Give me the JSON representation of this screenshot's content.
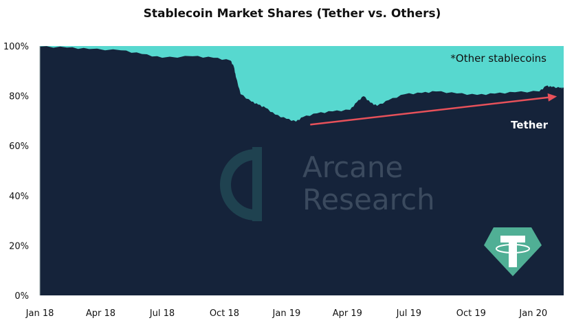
{
  "chart_data": {
    "type": "area",
    "stacked": true,
    "title": "Stablecoin Market Shares (Tether vs. Others)",
    "xlabel": "",
    "ylabel": "",
    "ylim": [
      0,
      100
    ],
    "xlim": [
      "2018-01-01",
      "2020-02-15"
    ],
    "y_ticks": [
      0,
      20,
      40,
      60,
      80,
      100
    ],
    "y_tick_labels": [
      "0%",
      "20%",
      "40%",
      "60%",
      "80%",
      "100%"
    ],
    "x_ticks": [
      "2018-01-01",
      "2018-04-01",
      "2018-07-01",
      "2018-10-01",
      "2019-01-01",
      "2019-04-01",
      "2019-07-01",
      "2019-10-01",
      "2020-01-01"
    ],
    "x_tick_labels": [
      "Jan 18",
      "Apr 18",
      "Jul 18",
      "Oct 18",
      "Jan 19",
      "Apr 19",
      "Jul 19",
      "Oct 19",
      "Jan 20"
    ],
    "grid": false,
    "series": [
      {
        "name": "Tether",
        "color": "#15233a",
        "points": [
          [
            "2018-01-01",
            99.8
          ],
          [
            "2018-02-10",
            99.4
          ],
          [
            "2018-03-15",
            98.8
          ],
          [
            "2018-05-01",
            98.3
          ],
          [
            "2018-06-01",
            96.8
          ],
          [
            "2018-07-01",
            95.3
          ],
          [
            "2018-08-15",
            95.9
          ],
          [
            "2018-09-15",
            95.3
          ],
          [
            "2018-10-10",
            94.2
          ],
          [
            "2018-10-15",
            91.7
          ],
          [
            "2018-10-18",
            87.6
          ],
          [
            "2018-10-25",
            80.7
          ],
          [
            "2018-11-10",
            77.7
          ],
          [
            "2018-11-20",
            76.5
          ],
          [
            "2018-12-01",
            75.2
          ],
          [
            "2018-12-15",
            72.5
          ],
          [
            "2019-01-01",
            70.8
          ],
          [
            "2019-01-15",
            69.7
          ],
          [
            "2019-01-25",
            71.5
          ],
          [
            "2019-02-15",
            73.0
          ],
          [
            "2019-03-10",
            73.8
          ],
          [
            "2019-04-05",
            74.4
          ],
          [
            "2019-04-15",
            77.5
          ],
          [
            "2019-04-25",
            79.9
          ],
          [
            "2019-05-05",
            77.3
          ],
          [
            "2019-05-15",
            76.0
          ],
          [
            "2019-06-01",
            78.3
          ],
          [
            "2019-06-25",
            80.7
          ],
          [
            "2019-07-20",
            81.2
          ],
          [
            "2019-08-10",
            81.8
          ],
          [
            "2019-09-10",
            81.0
          ],
          [
            "2019-10-10",
            80.4
          ],
          [
            "2019-11-05",
            80.9
          ],
          [
            "2019-12-05",
            81.5
          ],
          [
            "2020-01-10",
            81.8
          ],
          [
            "2020-01-20",
            84.0
          ],
          [
            "2020-01-28",
            83.6
          ],
          [
            "2020-02-10",
            83.2
          ],
          [
            "2020-02-15",
            83.2
          ]
        ]
      },
      {
        "name": "*Other stablecoins",
        "color": "#57d8cf",
        "fills_to": 100
      }
    ],
    "annotations": {
      "other_label": "*Other stablecoins",
      "tether_label": "Tether",
      "trend_arrow": {
        "from": [
          "2019-02-05",
          68.5
        ],
        "to": [
          "2020-02-05",
          79.8
        ],
        "color": "#e8515a"
      }
    }
  },
  "watermark": {
    "brand": "Arcane Research",
    "line1": "Arcane",
    "line2": "Research"
  },
  "logo": {
    "name": "tether-logo",
    "color": "#50af95"
  }
}
